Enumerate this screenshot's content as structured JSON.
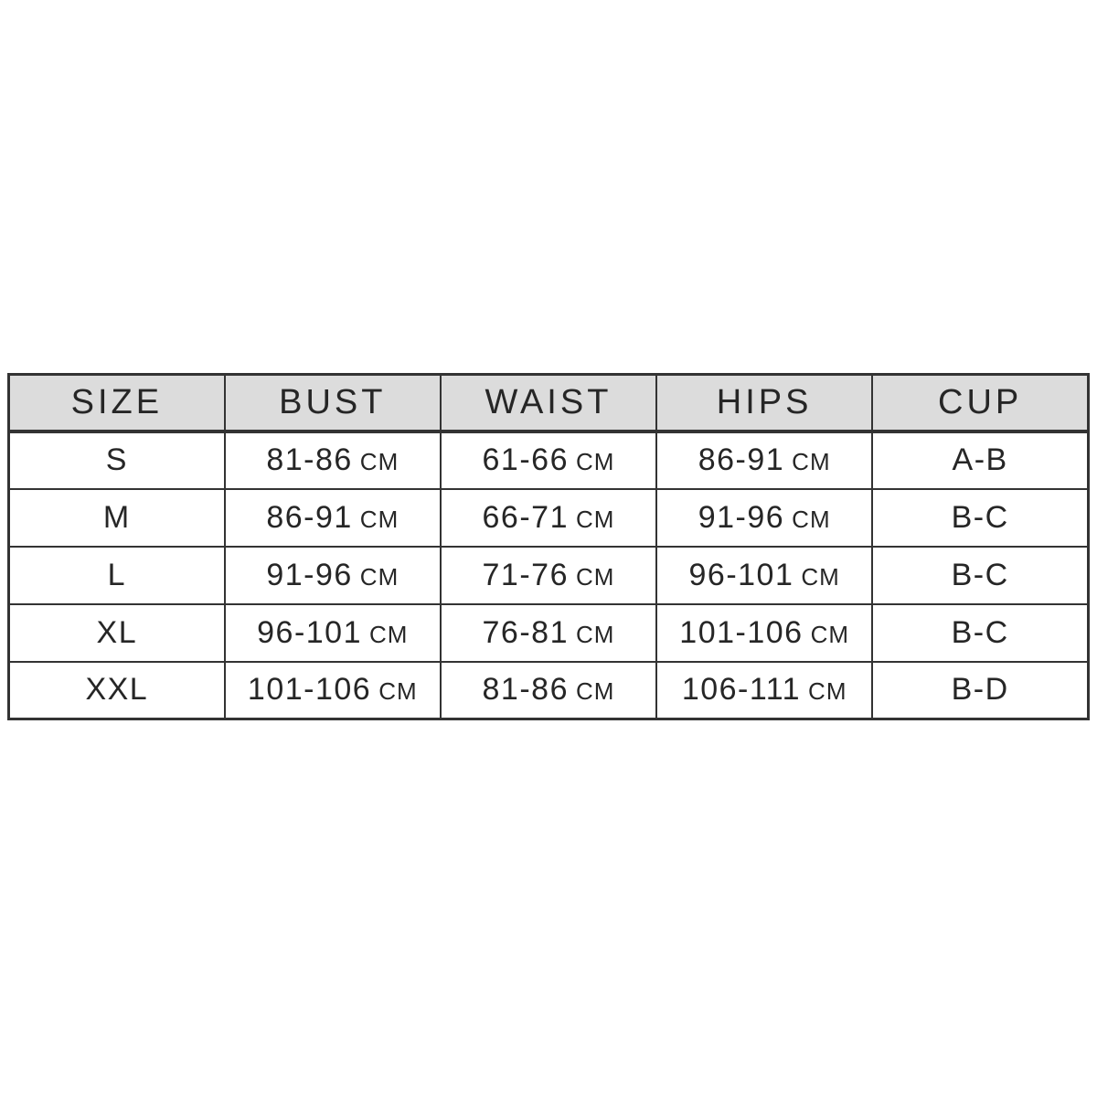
{
  "page": {
    "background_color": "#ffffff"
  },
  "table": {
    "header_bg": "#dcdcdc",
    "border_color": "#333333",
    "text_color": "#262626",
    "columns": [
      "SIZE",
      "BUST",
      "WAIST",
      "HIPS",
      "CUP"
    ],
    "unit_label": "CM",
    "rows": [
      {
        "size": "S",
        "bust": "81-86",
        "waist": "61-66",
        "hips": "86-91",
        "cup": "A-B"
      },
      {
        "size": "M",
        "bust": "86-91",
        "waist": "66-71",
        "hips": "91-96",
        "cup": "B-C"
      },
      {
        "size": "L",
        "bust": "91-96",
        "waist": "71-76",
        "hips": "96-101",
        "cup": "B-C"
      },
      {
        "size": "XL",
        "bust": "96-101",
        "waist": "76-81",
        "hips": "101-106",
        "cup": "B-C"
      },
      {
        "size": "XXL",
        "bust": "101-106",
        "waist": "81-86",
        "hips": "106-111",
        "cup": "B-D"
      }
    ]
  }
}
